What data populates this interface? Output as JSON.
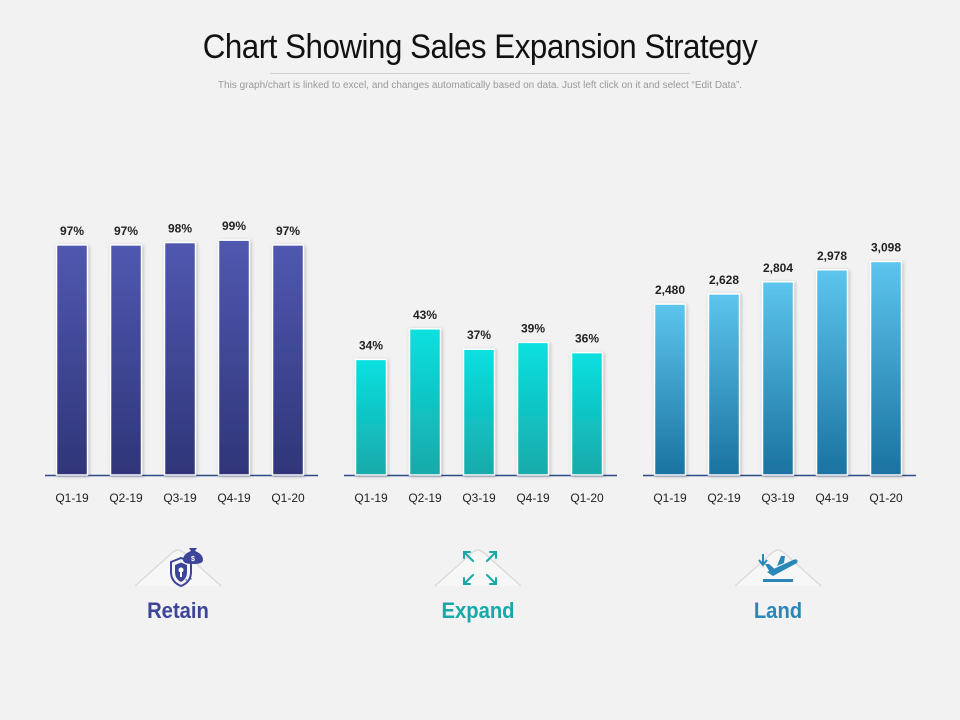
{
  "header": {
    "title": "Chart Showing Sales Expansion Strategy",
    "subtitle": "This graph/chart is linked to excel, and changes automatically  based on data. Just left click on it and select “Edit Data”."
  },
  "colors": {
    "retain": "#3d4598",
    "expand": "#16c9c9",
    "land": "#2e95c4",
    "axis": "#2e4a8a"
  },
  "chart_data": [
    {
      "type": "bar",
      "name": "Retain",
      "categories": [
        "Q1-19",
        "Q2-19",
        "Q3-19",
        "Q4-19",
        "Q1-20"
      ],
      "values": [
        97,
        97,
        98,
        99,
        97
      ],
      "labels": [
        "97%",
        "97%",
        "98%",
        "99%",
        "97%"
      ],
      "unit": "%"
    },
    {
      "type": "bar",
      "name": "Expand",
      "categories": [
        "Q1-19",
        "Q2-19",
        "Q3-19",
        "Q4-19",
        "Q1-20"
      ],
      "values": [
        34,
        43,
        37,
        39,
        36
      ],
      "labels": [
        "34%",
        "43%",
        "37%",
        "39%",
        "36%"
      ],
      "unit": "%"
    },
    {
      "type": "bar",
      "name": "Land",
      "categories": [
        "Q1-19",
        "Q2-19",
        "Q3-19",
        "Q4-19",
        "Q1-20"
      ],
      "values": [
        2480,
        2628,
        2804,
        2978,
        3098
      ],
      "labels": [
        "2,480",
        "2,628",
        "2,804",
        "2,978",
        "3,098"
      ]
    }
  ],
  "badges": [
    {
      "label": "Retain",
      "icon": "shield-money-bag-icon",
      "color": "#3d4598"
    },
    {
      "label": "Expand",
      "icon": "expand-arrows-icon",
      "color": "#17a8a8"
    },
    {
      "label": "Land",
      "icon": "airplane-landing-icon",
      "color": "#2a87b8"
    }
  ]
}
